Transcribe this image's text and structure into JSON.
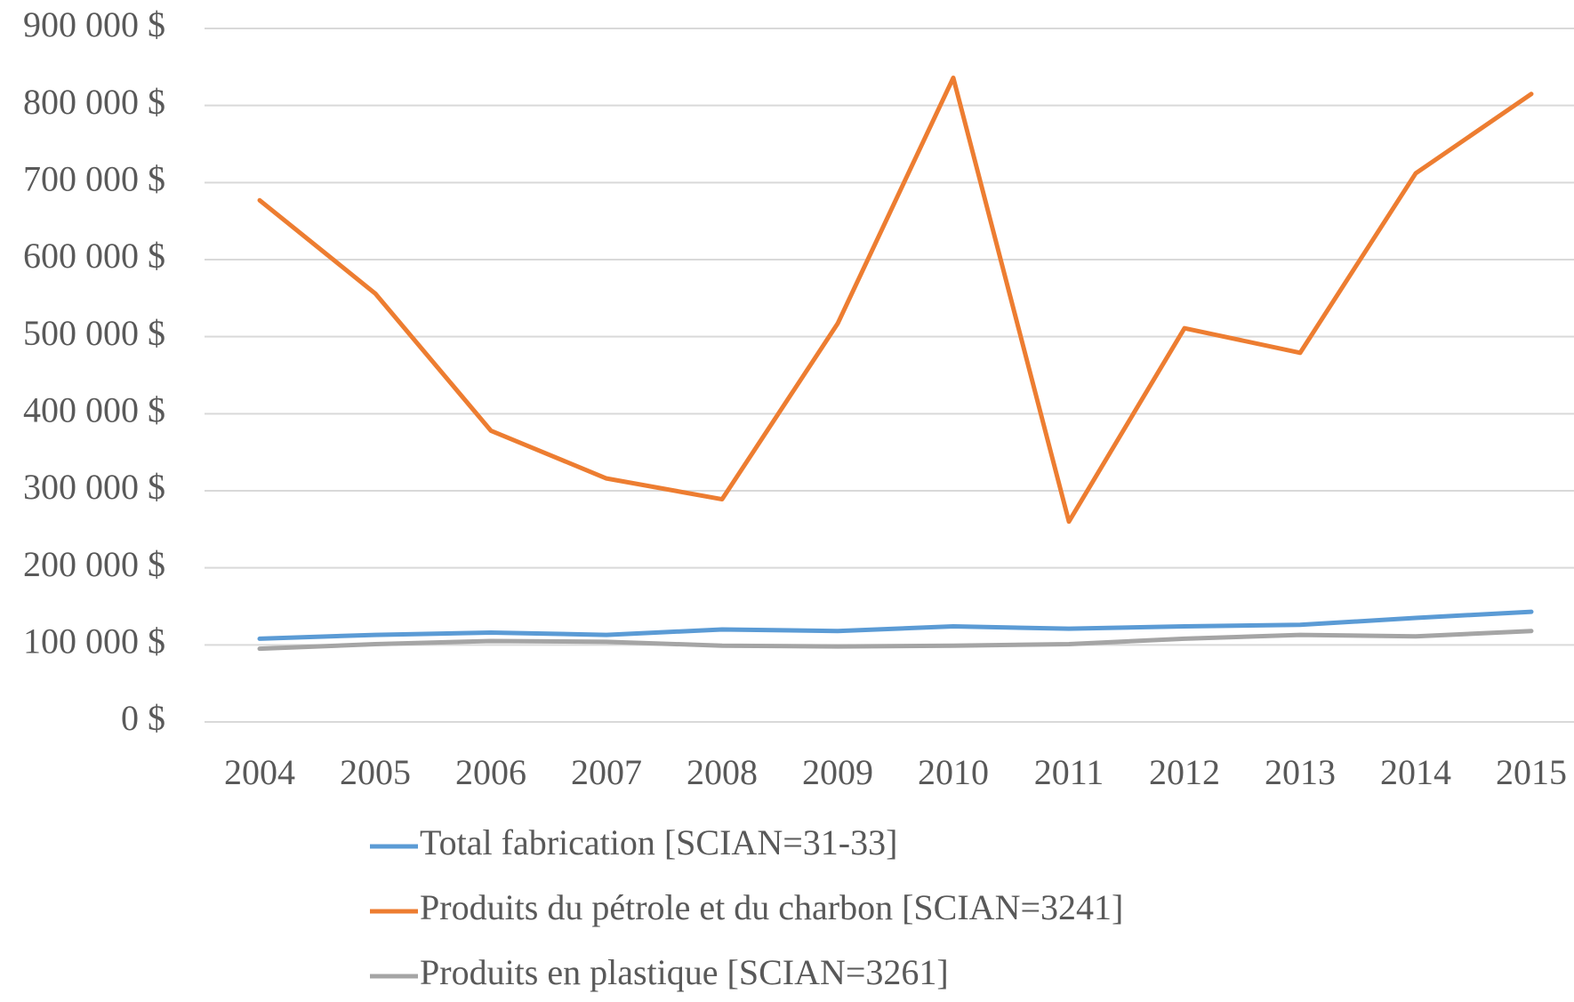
{
  "chart_data": {
    "type": "line",
    "categories": [
      "2004",
      "2005",
      "2006",
      "2007",
      "2008",
      "2009",
      "2010",
      "2011",
      "2012",
      "2013",
      "2014",
      "2015"
    ],
    "series": [
      {
        "name": "Total fabrication [SCIAN=31-33]",
        "color": "#5b9bd5",
        "values": [
          108000,
          113000,
          116000,
          113000,
          120000,
          118000,
          124000,
          121000,
          124000,
          126000,
          135000,
          143000
        ]
      },
      {
        "name": "Produits du pétrole et du charbon [SCIAN=3241]",
        "color": "#ed7d31",
        "values": [
          677000,
          556000,
          378000,
          316000,
          289000,
          517000,
          836000,
          260000,
          511000,
          479000,
          712000,
          815000
        ]
      },
      {
        "name": "Produits en plastique [SCIAN=3261]",
        "color": "#a5a5a5",
        "values": [
          95000,
          101000,
          105000,
          104000,
          99000,
          98000,
          99000,
          101000,
          108000,
          113000,
          111000,
          118000
        ]
      }
    ],
    "ylim": [
      0,
      900000
    ],
    "yticks": [
      {
        "value": 0,
        "label": "0 $"
      },
      {
        "value": 100000,
        "label": "100 000 $"
      },
      {
        "value": 200000,
        "label": "200 000 $"
      },
      {
        "value": 300000,
        "label": "300 000 $"
      },
      {
        "value": 400000,
        "label": "400 000 $"
      },
      {
        "value": 500000,
        "label": "500 000 $"
      },
      {
        "value": 600000,
        "label": "600 000 $"
      },
      {
        "value": 700000,
        "label": "700 000 $"
      },
      {
        "value": 800000,
        "label": "800 000 $"
      },
      {
        "value": 900000,
        "label": "900 000 $"
      }
    ],
    "grid": true,
    "legend": "bottom"
  }
}
